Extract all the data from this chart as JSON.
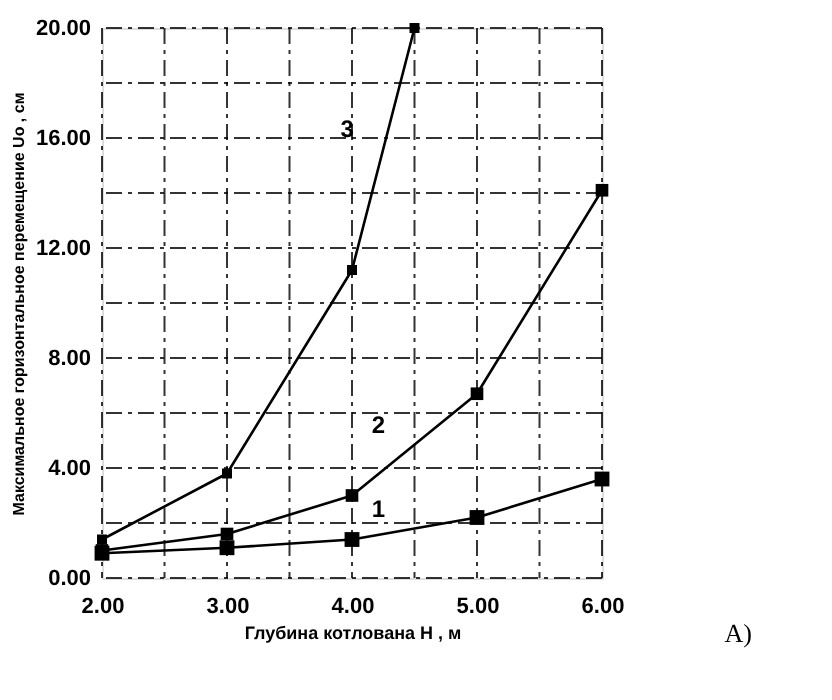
{
  "chart_data": {
    "type": "line",
    "xlabel": "Глубина котлована H , м",
    "ylabel": "Максимальное горизонтальное перемещение Uo , см",
    "x": [
      2,
      3,
      4,
      5,
      6
    ],
    "series": [
      {
        "name": "1",
        "color": "#000000",
        "values": [
          0.9,
          1.1,
          1.4,
          2.2,
          3.6
        ]
      },
      {
        "name": "2",
        "color": "#000000",
        "values": [
          1.0,
          1.6,
          3.0,
          6.7,
          14.1
        ]
      },
      {
        "name": "3",
        "color": "#000000",
        "x": [
          2,
          3,
          4,
          4.5
        ],
        "values": [
          1.4,
          3.8,
          11.2,
          20.0
        ]
      }
    ],
    "xlim": [
      2,
      6
    ],
    "ylim": [
      0,
      20
    ],
    "xticks": [
      {
        "value": 2,
        "label": "2.00"
      },
      {
        "value": 2.5,
        "label": null
      },
      {
        "value": 3,
        "label": "3.00"
      },
      {
        "value": 3.5,
        "label": null
      },
      {
        "value": 4,
        "label": "4.00"
      },
      {
        "value": 4.5,
        "label": null
      },
      {
        "value": 5,
        "label": "5.00"
      },
      {
        "value": 5.5,
        "label": null
      },
      {
        "value": 6,
        "label": "6.00"
      }
    ],
    "yticks": [
      {
        "value": 0,
        "label": "0.00"
      },
      {
        "value": 2,
        "label": null
      },
      {
        "value": 4,
        "label": "4.00"
      },
      {
        "value": 6,
        "label": null
      },
      {
        "value": 8,
        "label": "8.00"
      },
      {
        "value": 10,
        "label": null
      },
      {
        "value": 12,
        "label": "12.00"
      },
      {
        "value": 14,
        "label": null
      },
      {
        "value": 16,
        "label": "16.00"
      },
      {
        "value": 18,
        "label": null
      },
      {
        "value": 20,
        "label": "20.00"
      }
    ],
    "grid": true,
    "marker": "square",
    "line_style": "solid",
    "annotations": [
      "А)"
    ]
  }
}
